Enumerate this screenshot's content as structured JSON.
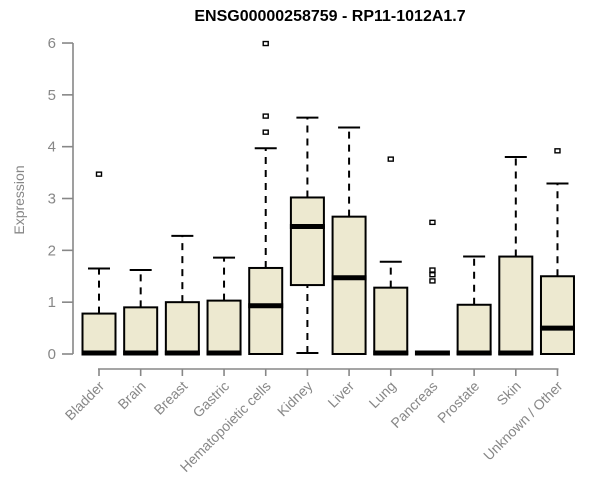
{
  "title": "ENSG00000258759 - RP11-1012A1.7",
  "chart_data": {
    "type": "boxplot",
    "title": "ENSG00000258759 - RP11-1012A1.7",
    "xlabel": "",
    "ylabel": "Expression",
    "ylim": [
      0,
      6
    ],
    "yticks": [
      0,
      1,
      2,
      3,
      4,
      5,
      6
    ],
    "grid": false,
    "legend": "none",
    "categories": [
      "Bladder",
      "Brain",
      "Breast",
      "Gastric",
      "Hematopoietic cells",
      "Kidney",
      "Liver",
      "Lung",
      "Pancreas",
      "Prostate",
      "Skin",
      "Unknown / Other"
    ],
    "boxes": [
      {
        "label": "Bladder",
        "whislo": 0,
        "q1": 0,
        "med": 0.02,
        "q3": 0.78,
        "whishi": 1.65,
        "outliers": [
          3.47
        ]
      },
      {
        "label": "Brain",
        "whislo": 0,
        "q1": 0,
        "med": 0.02,
        "q3": 0.9,
        "whishi": 1.62,
        "outliers": []
      },
      {
        "label": "Breast",
        "whislo": 0,
        "q1": 0,
        "med": 0.02,
        "q3": 1.0,
        "whishi": 2.28,
        "outliers": []
      },
      {
        "label": "Gastric",
        "whislo": 0,
        "q1": 0,
        "med": 0.02,
        "q3": 1.03,
        "whishi": 1.86,
        "outliers": []
      },
      {
        "label": "Hematopoietic cells",
        "whislo": 0,
        "q1": 0,
        "med": 0.93,
        "q3": 1.66,
        "whishi": 3.97,
        "outliers": [
          4.28,
          4.59,
          5.99
        ]
      },
      {
        "label": "Kidney",
        "whislo": 0.02,
        "q1": 1.33,
        "med": 2.46,
        "q3": 3.02,
        "whishi": 4.56,
        "outliers": []
      },
      {
        "label": "Liver",
        "whislo": 0,
        "q1": 0,
        "med": 1.47,
        "q3": 2.65,
        "whishi": 4.37,
        "outliers": []
      },
      {
        "label": "Lung",
        "whislo": 0,
        "q1": 0,
        "med": 0.02,
        "q3": 1.28,
        "whishi": 1.78,
        "outliers": [
          3.76
        ]
      },
      {
        "label": "Pancreas",
        "whislo": 0.02,
        "q1": 0.02,
        "med": 0.02,
        "q3": 0.02,
        "whishi": 0.02,
        "outliers": [
          1.41,
          1.53,
          1.62,
          2.54
        ]
      },
      {
        "label": "Prostate",
        "whislo": 0,
        "q1": 0,
        "med": 0.02,
        "q3": 0.95,
        "whishi": 1.88,
        "outliers": []
      },
      {
        "label": "Skin",
        "whislo": 0,
        "q1": 0,
        "med": 0.02,
        "q3": 1.88,
        "whishi": 3.8,
        "outliers": []
      },
      {
        "label": "Unknown / Other",
        "whislo": 0,
        "q1": 0,
        "med": 0.5,
        "q3": 1.5,
        "whishi": 3.29,
        "outliers": [
          3.92
        ]
      }
    ]
  },
  "colors": {
    "background": "#FFFFFF",
    "box_fill": "#EDE9D0",
    "box_stroke": "#000000",
    "median": "#000000",
    "whisker": "#000000",
    "axis": "#878787",
    "tick_label": "#878787",
    "category_label": "#878787",
    "title_color": "#000000"
  }
}
